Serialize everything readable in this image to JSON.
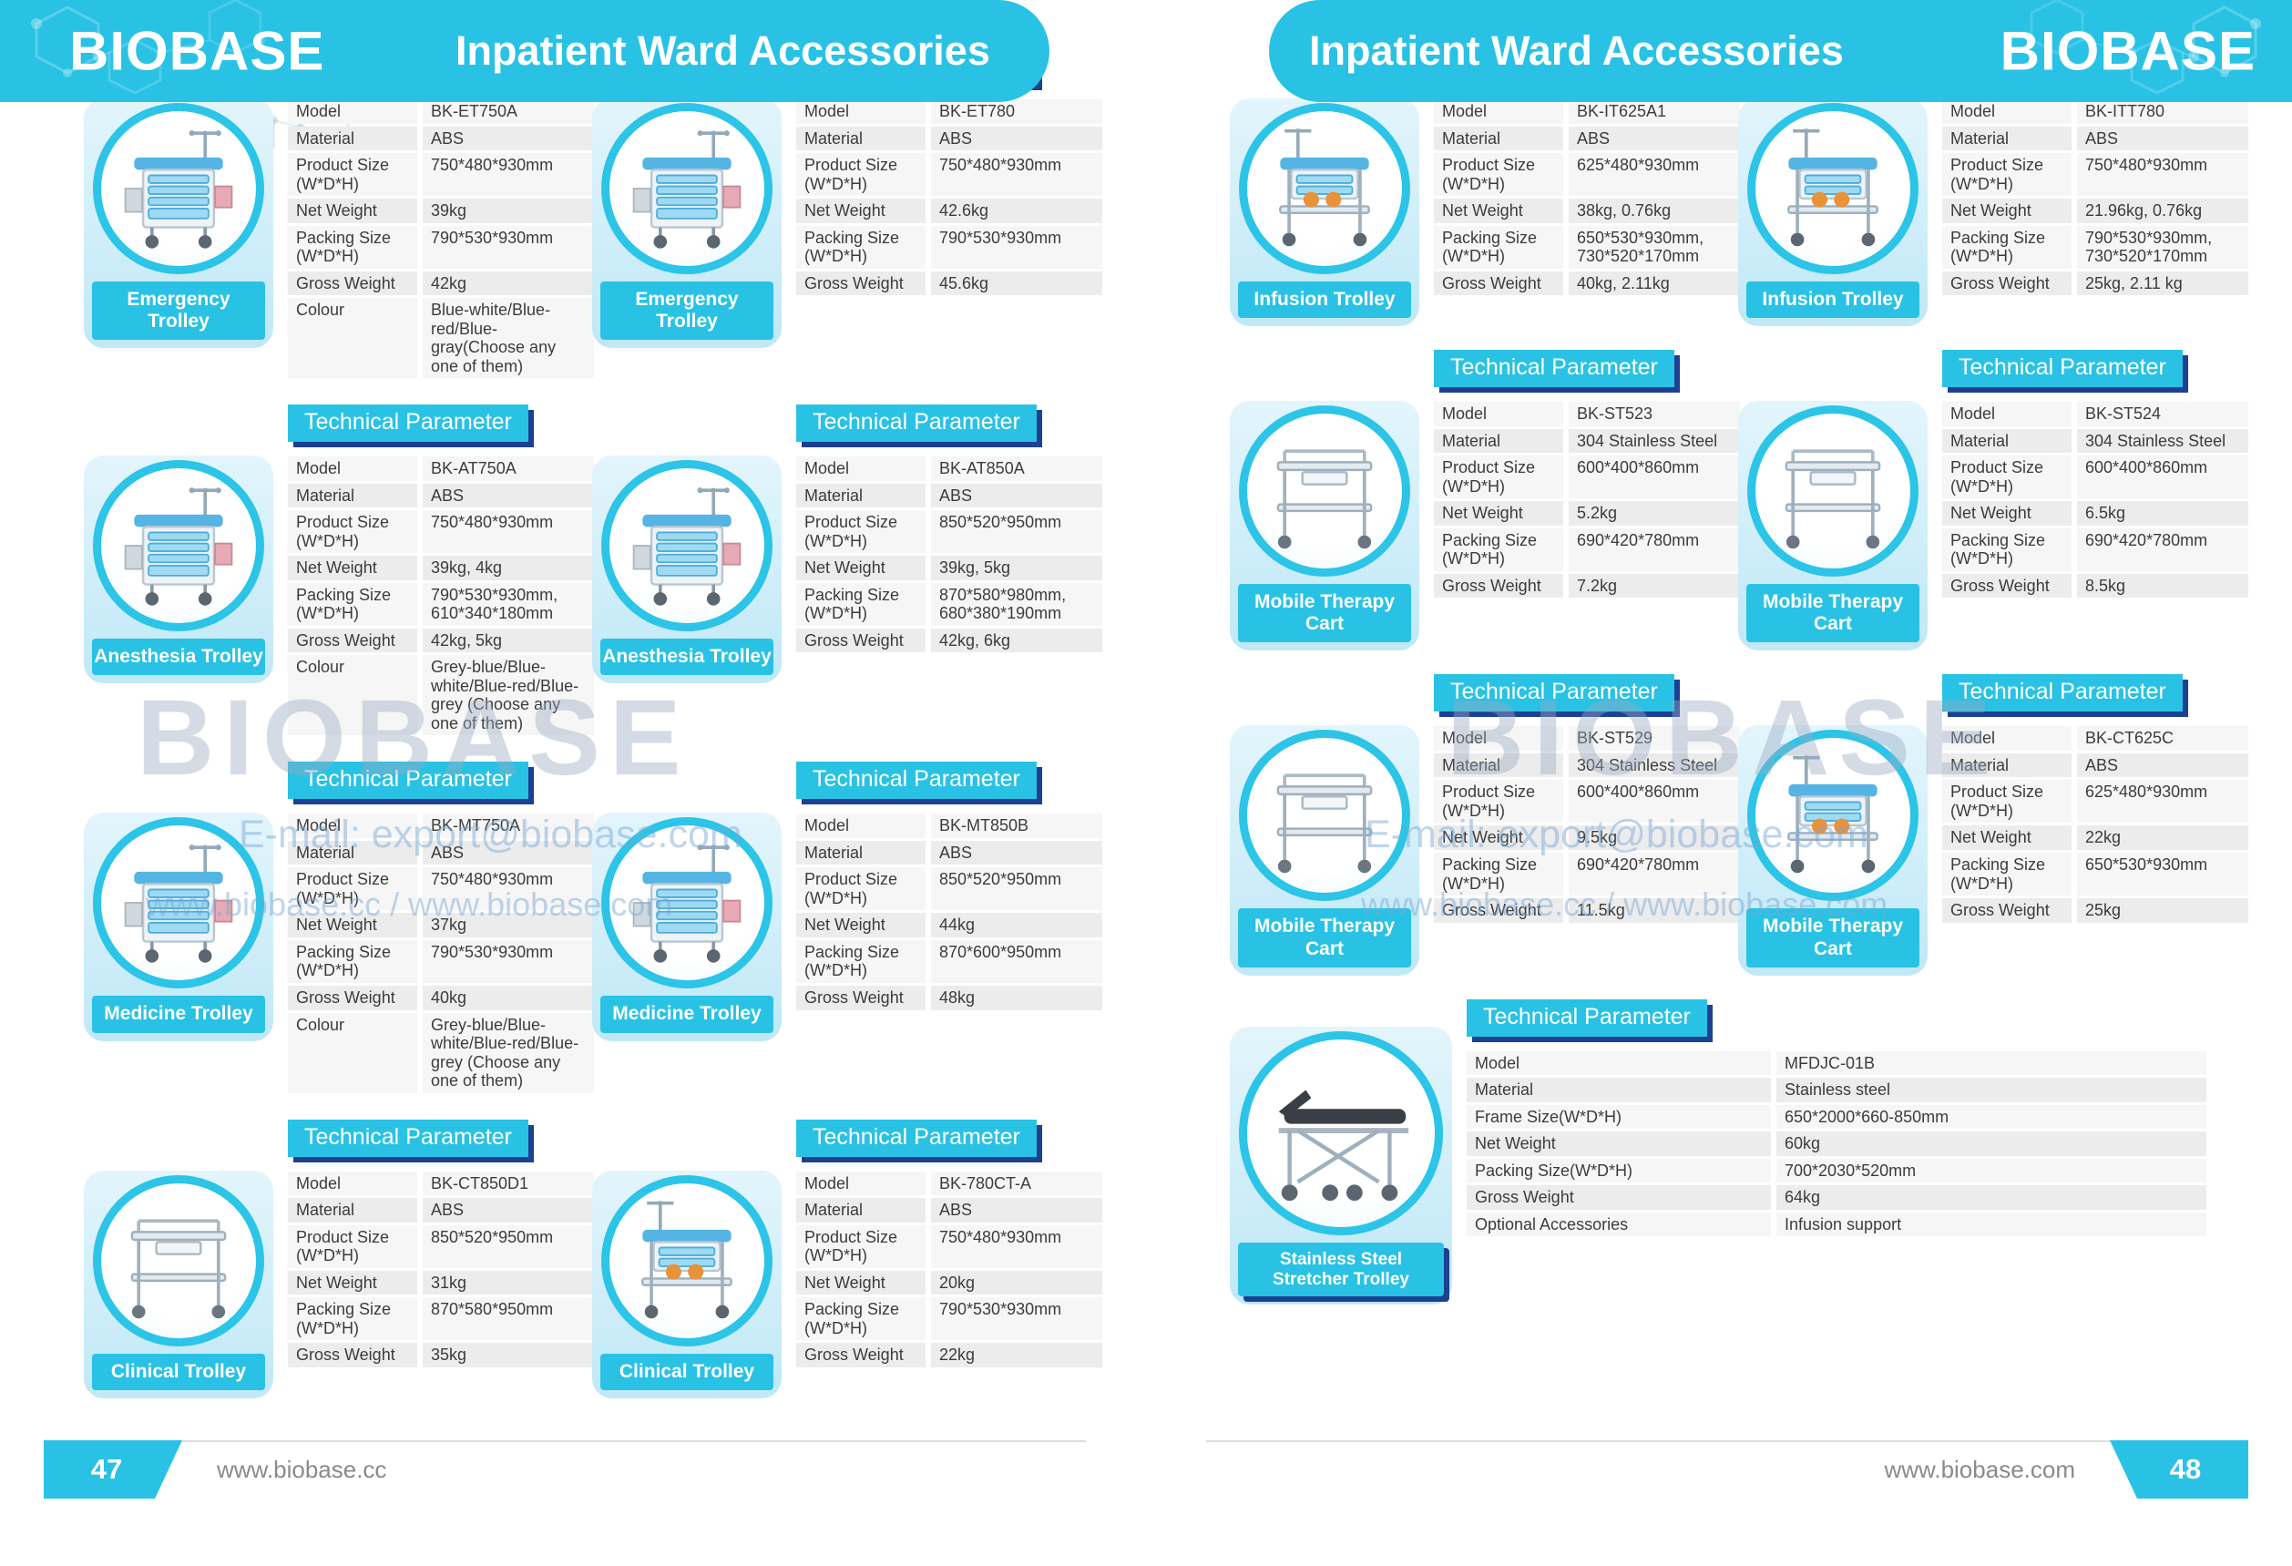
{
  "labels": {
    "table_header": "Technical Parameter"
  },
  "colors": {
    "accent": "#29c2e4",
    "header_shadow": "#1d4092",
    "ribbon": "#29c2e4",
    "row_light": "#f6f6f6",
    "row_dark": "#ececec"
  },
  "page_left": {
    "brand": "BIOBASE",
    "title": "Inpatient Ward Accessories",
    "page_number": "47",
    "site": "www.biobase.cc",
    "watermark": {
      "brand": "BIOBASE",
      "email": "E-mail: export@biobase.com",
      "urls": "www.biobase.cc / www.biobase.com"
    },
    "products": [
      {
        "label": "Emergency Trolley",
        "icon": "emergency-trolley-icon",
        "art": "trolley",
        "rows": [
          {
            "label": "Model",
            "value": "BK-ET750A"
          },
          {
            "label": "Material",
            "value": "ABS"
          },
          {
            "label": "Product Size (W*D*H)",
            "value": "750*480*930mm"
          },
          {
            "label": "Net Weight",
            "value": "39kg"
          },
          {
            "label": "Packing Size (W*D*H)",
            "value": "790*530*930mm"
          },
          {
            "label": "Gross Weight",
            "value": "42kg"
          },
          {
            "label": "Colour",
            "value": "Blue-white/Blue-red/Blue-gray(Choose any one of them)"
          }
        ]
      },
      {
        "label": "Emergency Trolley",
        "icon": "emergency-trolley-icon",
        "art": "trolley",
        "rows": [
          {
            "label": "Model",
            "value": "BK-ET780"
          },
          {
            "label": "Material",
            "value": "ABS"
          },
          {
            "label": "Product Size (W*D*H)",
            "value": "750*480*930mm"
          },
          {
            "label": "Net Weight",
            "value": "42.6kg"
          },
          {
            "label": "Packing Size (W*D*H)",
            "value": "790*530*930mm"
          },
          {
            "label": "Gross Weight",
            "value": "45.6kg"
          }
        ]
      },
      {
        "label": "Anesthesia Trolley",
        "icon": "anesthesia-trolley-icon",
        "art": "trolley",
        "rows": [
          {
            "label": "Model",
            "value": "BK-AT750A"
          },
          {
            "label": "Material",
            "value": "ABS"
          },
          {
            "label": "Product Size (W*D*H)",
            "value": "750*480*930mm"
          },
          {
            "label": "Net Weight",
            "value": "39kg, 4kg"
          },
          {
            "label": "Packing Size (W*D*H)",
            "value": "790*530*930mm, 610*340*180mm"
          },
          {
            "label": "Gross Weight",
            "value": "42kg, 5kg"
          },
          {
            "label": "Colour",
            "value": "Grey-blue/Blue-white/Blue-red/Blue-grey (Choose any one of them)"
          }
        ]
      },
      {
        "label": "Anesthesia Trolley",
        "icon": "anesthesia-trolley-icon",
        "art": "trolley",
        "rows": [
          {
            "label": "Model",
            "value": "BK-AT850A"
          },
          {
            "label": "Material",
            "value": "ABS"
          },
          {
            "label": "Product Size (W*D*H)",
            "value": "850*520*950mm"
          },
          {
            "label": "Net Weight",
            "value": "39kg, 5kg"
          },
          {
            "label": "Packing Size (W*D*H)",
            "value": "870*580*980mm, 680*380*190mm"
          },
          {
            "label": "Gross Weight",
            "value": "42kg, 6kg"
          }
        ]
      },
      {
        "label": "Medicine Trolley",
        "icon": "medicine-trolley-icon",
        "art": "trolley",
        "rows": [
          {
            "label": "Model",
            "value": "BK-MT750A"
          },
          {
            "label": "Material",
            "value": "ABS"
          },
          {
            "label": "Product Size (W*D*H)",
            "value": "750*480*930mm"
          },
          {
            "label": "Net Weight",
            "value": "37kg"
          },
          {
            "label": "Packing Size (W*D*H)",
            "value": "790*530*930mm"
          },
          {
            "label": "Gross Weight",
            "value": "40kg"
          },
          {
            "label": "Colour",
            "value": "Grey-blue/Blue-white/Blue-red/Blue-grey (Choose any one of them)"
          }
        ]
      },
      {
        "label": "Medicine Trolley",
        "icon": "medicine-trolley-icon",
        "art": "trolley",
        "rows": [
          {
            "label": "Model",
            "value": "BK-MT850B"
          },
          {
            "label": "Material",
            "value": "ABS"
          },
          {
            "label": "Product Size (W*D*H)",
            "value": "850*520*950mm"
          },
          {
            "label": "Net Weight",
            "value": "44kg"
          },
          {
            "label": "Packing Size (W*D*H)",
            "value": "870*600*950mm"
          },
          {
            "label": "Gross Weight",
            "value": "48kg"
          }
        ]
      },
      {
        "label": "Clinical Trolley",
        "icon": "clinical-trolley-icon",
        "art": "steel",
        "rows": [
          {
            "label": "Model",
            "value": "BK-CT850D1"
          },
          {
            "label": "Material",
            "value": "ABS"
          },
          {
            "label": "Product Size (W*D*H)",
            "value": "850*520*950mm"
          },
          {
            "label": "Net Weight",
            "value": "31kg"
          },
          {
            "label": "Packing Size (W*D*H)",
            "value": "870*580*950mm"
          },
          {
            "label": "Gross Weight",
            "value": "35kg"
          }
        ]
      },
      {
        "label": "Clinical Trolley",
        "icon": "clinical-trolley-icon",
        "art": "infusion",
        "rows": [
          {
            "label": "Model",
            "value": "BK-780CT-A"
          },
          {
            "label": "Material",
            "value": "ABS"
          },
          {
            "label": "Product Size (W*D*H)",
            "value": "750*480*930mm"
          },
          {
            "label": "Net Weight",
            "value": "20kg"
          },
          {
            "label": "Packing Size (W*D*H)",
            "value": "790*530*930mm"
          },
          {
            "label": "Gross Weight",
            "value": "22kg"
          }
        ]
      }
    ]
  },
  "page_right": {
    "brand": "BIOBASE",
    "title": "Inpatient Ward Accessories",
    "page_number": "48",
    "site": "www.biobase.com",
    "watermark": {
      "brand": "BIOBASE",
      "email": "E-mail: export@biobase.com",
      "urls": "www.biobase.cc / www.biobase.com"
    },
    "products": [
      {
        "label": "Infusion Trolley",
        "icon": "infusion-trolley-icon",
        "art": "infusion",
        "rows": [
          {
            "label": "Model",
            "value": "BK-IT625A1"
          },
          {
            "label": "Material",
            "value": "ABS"
          },
          {
            "label": "Product Size (W*D*H)",
            "value": "625*480*930mm"
          },
          {
            "label": "Net Weight",
            "value": "38kg, 0.76kg"
          },
          {
            "label": "Packing Size (W*D*H)",
            "value": "650*530*930mm, 730*520*170mm"
          },
          {
            "label": "Gross Weight",
            "value": "40kg, 2.11kg"
          }
        ]
      },
      {
        "label": "Infusion Trolley",
        "icon": "infusion-trolley-icon",
        "art": "infusion",
        "rows": [
          {
            "label": "Model",
            "value": "BK-ITT780"
          },
          {
            "label": "Material",
            "value": "ABS"
          },
          {
            "label": "Product Size (W*D*H)",
            "value": "750*480*930mm"
          },
          {
            "label": "Net Weight",
            "value": "21.96kg, 0.76kg"
          },
          {
            "label": "Packing Size (W*D*H)",
            "value": "790*530*930mm, 730*520*170mm"
          },
          {
            "label": "Gross Weight",
            "value": "25kg, 2.11 kg"
          }
        ]
      },
      {
        "label": "Mobile Therapy Cart",
        "icon": "mobile-therapy-cart-icon",
        "art": "steel",
        "rows": [
          {
            "label": "Model",
            "value": "BK-ST523"
          },
          {
            "label": "Material",
            "value": "304 Stainless Steel"
          },
          {
            "label": "Product Size (W*D*H)",
            "value": "600*400*860mm"
          },
          {
            "label": "Net Weight",
            "value": "5.2kg"
          },
          {
            "label": "Packing Size (W*D*H)",
            "value": "690*420*780mm"
          },
          {
            "label": "Gross Weight",
            "value": "7.2kg"
          }
        ]
      },
      {
        "label": "Mobile Therapy Cart",
        "icon": "mobile-therapy-cart-icon",
        "art": "steel",
        "rows": [
          {
            "label": "Model",
            "value": "BK-ST524"
          },
          {
            "label": "Material",
            "value": "304 Stainless Steel"
          },
          {
            "label": "Product Size (W*D*H)",
            "value": "600*400*860mm"
          },
          {
            "label": "Net Weight",
            "value": "6.5kg"
          },
          {
            "label": "Packing Size (W*D*H)",
            "value": "690*420*780mm"
          },
          {
            "label": "Gross Weight",
            "value": "8.5kg"
          }
        ]
      },
      {
        "label": "Mobile Therapy Cart",
        "icon": "mobile-therapy-cart-icon",
        "art": "steel",
        "rows": [
          {
            "label": "Model",
            "value": "BK-ST529"
          },
          {
            "label": "Material",
            "value": "304 Stainless Steel"
          },
          {
            "label": "Product Size (W*D*H)",
            "value": "600*400*860mm"
          },
          {
            "label": "Net Weight",
            "value": "9.5kg"
          },
          {
            "label": "Packing Size (W*D*H)",
            "value": "690*420*780mm"
          },
          {
            "label": "Gross Weight",
            "value": "11.5kg"
          }
        ]
      },
      {
        "label": "Mobile Therapy Cart",
        "icon": "mobile-therapy-cart-icon",
        "art": "infusion",
        "rows": [
          {
            "label": "Model",
            "value": "BK-CT625C"
          },
          {
            "label": "Material",
            "value": "ABS"
          },
          {
            "label": "Product Size (W*D*H)",
            "value": "625*480*930mm"
          },
          {
            "label": "Net Weight",
            "value": "22kg"
          },
          {
            "label": "Packing Size (W*D*H)",
            "value": "650*530*930mm"
          },
          {
            "label": "Gross Weight",
            "value": "25kg"
          }
        ]
      },
      {
        "label": "Stainless Steel Stretcher Trolley",
        "icon": "stretcher-trolley-icon",
        "art": "stretcher",
        "wide": true,
        "rows": [
          {
            "label": "Model",
            "value": "MFDJC-01B"
          },
          {
            "label": "Material",
            "value": "Stainless steel"
          },
          {
            "label": "Frame Size(W*D*H)",
            "value": "650*2000*660-850mm"
          },
          {
            "label": "Net Weight",
            "value": "60kg"
          },
          {
            "label": "Packing Size(W*D*H)",
            "value": "700*2030*520mm"
          },
          {
            "label": "Gross Weight",
            "value": "64kg"
          },
          {
            "label": "Optional Accessories",
            "value": "Infusion support"
          }
        ]
      }
    ]
  }
}
